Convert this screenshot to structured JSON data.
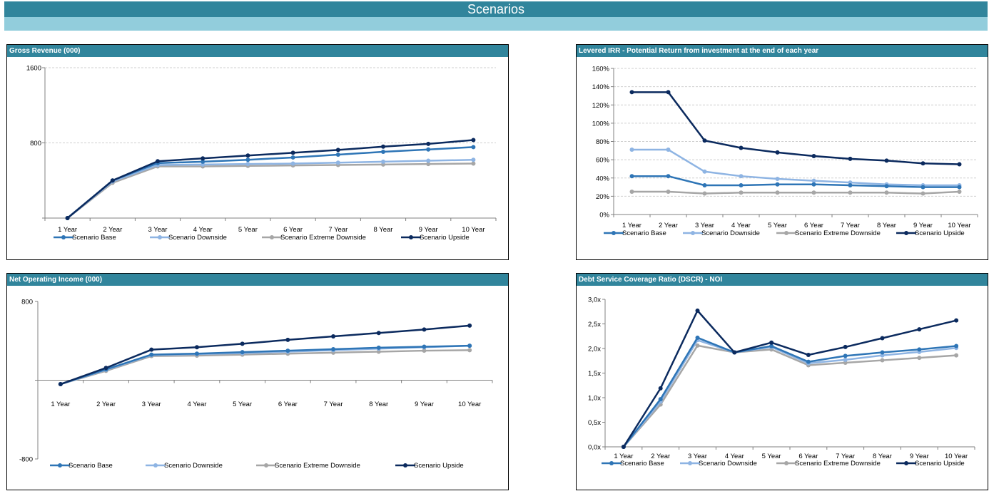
{
  "page": {
    "title": "Scenarios"
  },
  "legend": [
    "Scenario Base",
    "Scenario Downside",
    "Scenario Extreme Downside",
    "Scenario Upside"
  ],
  "colors": {
    "base": "#2e75b6",
    "downside": "#8eb4e3",
    "extreme": "#a6a6a6",
    "upside": "#0b2a5e",
    "header": "#31859c",
    "subheader": "#92cddc"
  },
  "charts": {
    "gross": {
      "title": "Gross Revenue (000)"
    },
    "irr": {
      "title": "Levered IRR - Potential Return from investment at the end of each year"
    },
    "noi": {
      "title": "Net Operating Income (000)"
    },
    "dscr": {
      "title": "Debt Service Coverage Ratio (DSCR) - NOI"
    }
  },
  "chart_data": [
    {
      "id": "gross",
      "type": "line",
      "title": "Gross Revenue (000)",
      "categories": [
        "1 Year",
        "2 Year",
        "3 Year",
        "4 Year",
        "5 Year",
        "6 Year",
        "7 Year",
        "8 Year",
        "9 Year",
        "10 Year"
      ],
      "ylim": [
        0,
        1600
      ],
      "yticks": [
        "",
        "800",
        "1600"
      ],
      "ytick_values": [
        0,
        800,
        1600
      ],
      "grid": true,
      "legend": "bottom",
      "series": [
        {
          "name": "Scenario Base",
          "values": [
            0,
            400,
            585,
            600,
            620,
            645,
            675,
            705,
            730,
            755
          ]
        },
        {
          "name": "Scenario Downside",
          "values": [
            0,
            390,
            565,
            570,
            575,
            580,
            590,
            600,
            610,
            620
          ]
        },
        {
          "name": "Scenario Extreme Downside",
          "values": [
            0,
            375,
            550,
            550,
            555,
            560,
            565,
            570,
            575,
            580
          ]
        },
        {
          "name": "Scenario Upside",
          "values": [
            0,
            400,
            605,
            635,
            665,
            695,
            725,
            760,
            790,
            830
          ]
        }
      ]
    },
    {
      "id": "irr",
      "type": "line",
      "title": "Levered IRR - Potential Return from investment at the end of each year",
      "categories": [
        "1 Year",
        "2 Year",
        "3 Year",
        "4 Year",
        "5 Year",
        "6 Year",
        "7 Year",
        "8 Year",
        "9 Year",
        "10 Year"
      ],
      "ylim": [
        0,
        160
      ],
      "yticks": [
        "0%",
        "20%",
        "40%",
        "60%",
        "80%",
        "100%",
        "120%",
        "140%",
        "160%"
      ],
      "ytick_values": [
        0,
        20,
        40,
        60,
        80,
        100,
        120,
        140,
        160
      ],
      "grid": true,
      "legend": "bottom",
      "series": [
        {
          "name": "Scenario Base",
          "values": [
            42,
            42,
            32,
            32,
            33,
            33,
            32,
            31,
            30,
            30
          ]
        },
        {
          "name": "Scenario Downside",
          "values": [
            71,
            71,
            47,
            42,
            39,
            37,
            35,
            33,
            32,
            32
          ]
        },
        {
          "name": "Scenario Extreme Downside",
          "values": [
            25,
            25,
            23,
            24,
            24,
            24,
            24,
            24,
            23,
            25
          ]
        },
        {
          "name": "Scenario Upside",
          "values": [
            134,
            134,
            81,
            73,
            68,
            64,
            61,
            59,
            56,
            55
          ]
        }
      ]
    },
    {
      "id": "noi",
      "type": "line",
      "title": "Net Operating Income (000)",
      "categories": [
        "1 Year",
        "2 Year",
        "3 Year",
        "4 Year",
        "5 Year",
        "6 Year",
        "7 Year",
        "8 Year",
        "9 Year",
        "10 Year"
      ],
      "ylim": [
        -800,
        800
      ],
      "yticks": [
        "-800",
        "",
        "800"
      ],
      "ytick_values": [
        -800,
        0,
        800
      ],
      "grid": false,
      "legend": "bottom",
      "series": [
        {
          "name": "Scenario Base",
          "values": [
            -40,
            110,
            260,
            270,
            285,
            300,
            315,
            330,
            340,
            350
          ]
        },
        {
          "name": "Scenario Downside",
          "values": [
            -40,
            105,
            255,
            265,
            275,
            290,
            305,
            320,
            335,
            350
          ]
        },
        {
          "name": "Scenario Extreme Downside",
          "values": [
            -40,
            95,
            245,
            250,
            260,
            270,
            280,
            290,
            300,
            305
          ]
        },
        {
          "name": "Scenario Upside",
          "values": [
            -40,
            125,
            310,
            335,
            370,
            410,
            445,
            480,
            515,
            555
          ]
        }
      ]
    },
    {
      "id": "dscr",
      "type": "line",
      "title": "Debt Service Coverage Ratio (DSCR) - NOI",
      "categories": [
        "1 Year",
        "2 Year",
        "3 Year",
        "4 Year",
        "5 Year",
        "6 Year",
        "7 Year",
        "8 Year",
        "9 Year",
        "10 Year"
      ],
      "ylim": [
        0,
        3
      ],
      "yticks": [
        "0,0x",
        "0,5x",
        "1,0x",
        "1,5x",
        "2,0x",
        "2,5x",
        "3,0x"
      ],
      "ytick_values": [
        0,
        0.5,
        1,
        1.5,
        2,
        2.5,
        3
      ],
      "grid": false,
      "legend": "bottom",
      "series": [
        {
          "name": "Scenario Base",
          "values": [
            0,
            0.97,
            2.22,
            1.92,
            2.05,
            1.73,
            1.85,
            1.92,
            1.98,
            2.05
          ]
        },
        {
          "name": "Scenario Downside",
          "values": [
            0,
            0.92,
            2.17,
            1.92,
            2.03,
            1.7,
            1.77,
            1.86,
            1.93,
            2.01
          ]
        },
        {
          "name": "Scenario Extreme Downside",
          "values": [
            0,
            0.86,
            2.06,
            1.92,
            1.98,
            1.66,
            1.71,
            1.76,
            1.81,
            1.86
          ]
        },
        {
          "name": "Scenario Upside",
          "values": [
            0,
            1.19,
            2.77,
            1.92,
            2.12,
            1.87,
            2.03,
            2.21,
            2.39,
            2.57
          ]
        }
      ]
    }
  ]
}
